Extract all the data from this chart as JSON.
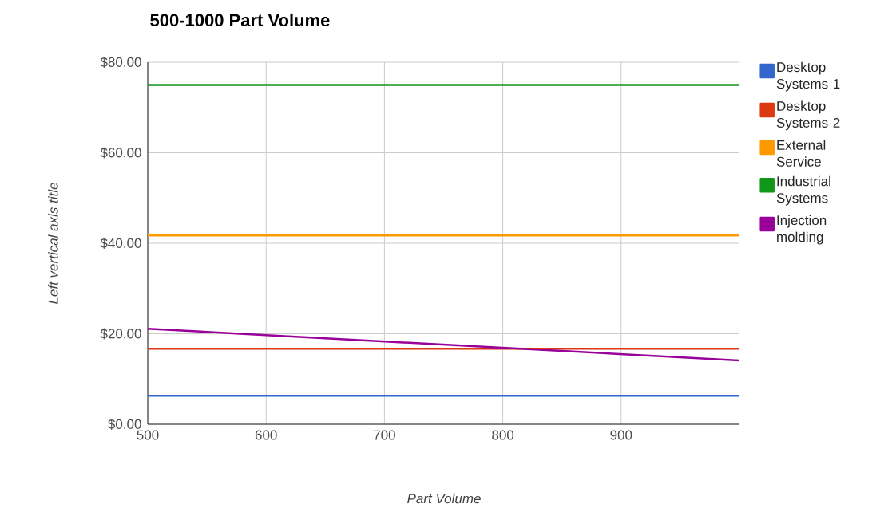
{
  "chart_data": {
    "type": "line",
    "title": "500-1000 Part Volume",
    "xlabel": "Part Volume",
    "ylabel": "Left vertical axis title",
    "x": [
      500,
      1000
    ],
    "series": [
      {
        "name": "Desktop Systems 1",
        "color": "#3366cc",
        "values": [
          6.3,
          6.3
        ]
      },
      {
        "name": "Desktop Systems 2",
        "color": "#dc3912",
        "values": [
          16.7,
          16.7
        ]
      },
      {
        "name": "External Service",
        "color": "#ff9900",
        "values": [
          41.7,
          41.7
        ]
      },
      {
        "name": "Industrial Systems",
        "color": "#109618",
        "values": [
          75,
          75
        ]
      },
      {
        "name": "Injection molding",
        "color": "#990099",
        "values": [
          21.1,
          14.1
        ]
      }
    ],
    "xlim": [
      500,
      1000
    ],
    "ylim": [
      0,
      80
    ],
    "xticks": [
      500,
      600,
      700,
      800,
      900
    ],
    "yticks": [
      {
        "value": 0,
        "label": "$0.00"
      },
      {
        "value": 20,
        "label": "$20.00"
      },
      {
        "value": 40,
        "label": "$40.00"
      },
      {
        "value": 60,
        "label": "$60.00"
      },
      {
        "value": 80,
        "label": "$80.00"
      }
    ],
    "grid": true,
    "legend": "right"
  }
}
